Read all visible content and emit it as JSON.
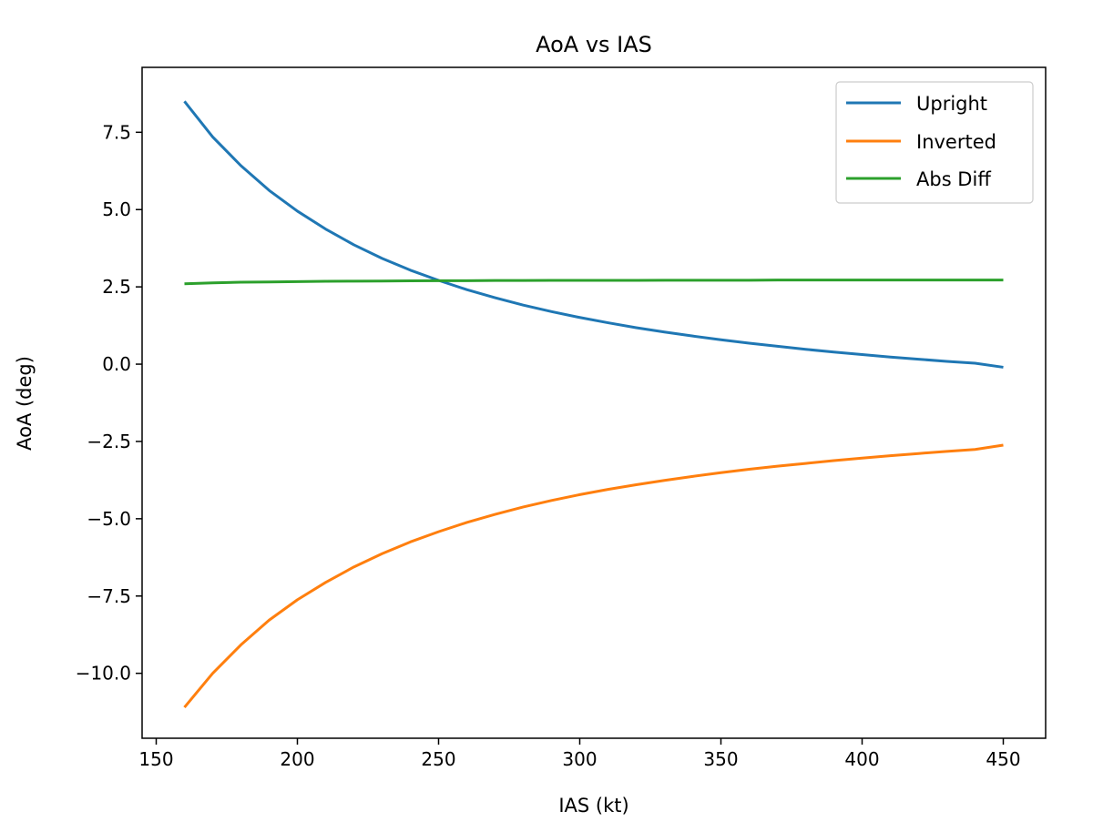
{
  "chart_data": {
    "type": "line",
    "title": "AoA vs IAS",
    "xlabel": "IAS (kt)",
    "ylabel": "AoA (deg)",
    "xlim": [
      145,
      465
    ],
    "ylim": [
      -12.1,
      9.6
    ],
    "grid": false,
    "legend_position": "top-right",
    "xticks": [
      150,
      200,
      250,
      300,
      350,
      400,
      450
    ],
    "xtick_labels": [
      "150",
      "200",
      "250",
      "300",
      "350",
      "400",
      "450"
    ],
    "yticks": [
      -10.0,
      -7.5,
      -5.0,
      -2.5,
      0.0,
      2.5,
      5.0,
      7.5
    ],
    "ytick_labels": [
      "−10.0",
      "−7.5",
      "−5.0",
      "−2.5",
      "0.0",
      "2.5",
      "5.0",
      "7.5"
    ],
    "x": [
      160,
      170,
      180,
      190,
      200,
      210,
      220,
      230,
      240,
      250,
      260,
      270,
      280,
      290,
      300,
      310,
      320,
      330,
      340,
      350,
      360,
      370,
      380,
      390,
      400,
      410,
      420,
      430,
      440,
      450
    ],
    "series": [
      {
        "name": "Upright",
        "color": "#1f77b4",
        "values": [
          8.5,
          7.35,
          6.42,
          5.62,
          4.95,
          4.37,
          3.86,
          3.42,
          3.04,
          2.71,
          2.41,
          2.15,
          1.91,
          1.7,
          1.51,
          1.34,
          1.18,
          1.04,
          0.91,
          0.79,
          0.68,
          0.58,
          0.48,
          0.39,
          0.31,
          0.23,
          0.16,
          0.09,
          0.03,
          -0.1
        ]
      },
      {
        "name": "Inverted",
        "color": "#ff7f0e",
        "values": [
          -11.1,
          -10.0,
          -9.08,
          -8.28,
          -7.62,
          -7.06,
          -6.56,
          -6.13,
          -5.75,
          -5.42,
          -5.12,
          -4.86,
          -4.62,
          -4.41,
          -4.22,
          -4.05,
          -3.9,
          -3.76,
          -3.63,
          -3.51,
          -3.4,
          -3.3,
          -3.21,
          -3.12,
          -3.04,
          -2.96,
          -2.89,
          -2.82,
          -2.76,
          -2.62
        ]
      },
      {
        "name": "Abs Diff",
        "color": "#2ca02c",
        "values": [
          2.6,
          2.63,
          2.65,
          2.66,
          2.67,
          2.68,
          2.685,
          2.69,
          2.695,
          2.7,
          2.7,
          2.705,
          2.705,
          2.71,
          2.71,
          2.71,
          2.71,
          2.715,
          2.715,
          2.715,
          2.715,
          2.72,
          2.72,
          2.72,
          2.72,
          2.72,
          2.72,
          2.72,
          2.72,
          2.72
        ]
      }
    ]
  }
}
